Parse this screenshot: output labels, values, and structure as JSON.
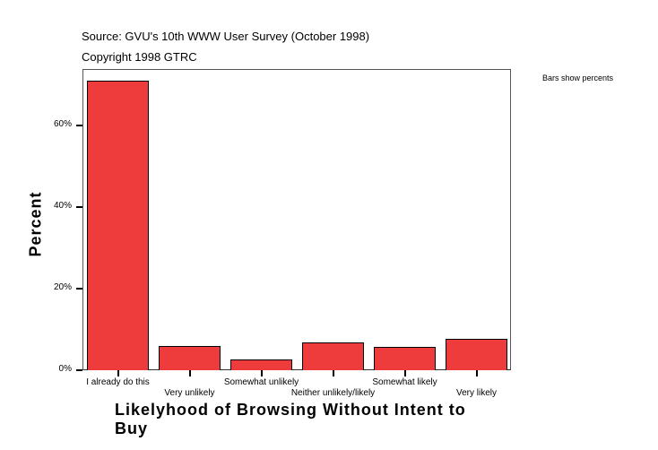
{
  "header": {
    "source": "Source: GVU's 10th WWW User Survey (October 1998)",
    "copyright": "Copyright 1998 GTRC",
    "note": "Bars show percents"
  },
  "chart_data": {
    "type": "bar",
    "title": "",
    "xlabel": "Likelyhood of Browsing Without Intent to Buy",
    "ylabel": "Percent",
    "categories": [
      "I already do this",
      "Very unlikely",
      "Somewhat unlikely",
      "Neither unlikely/likely",
      "Somewhat likely",
      "Very likely"
    ],
    "values": [
      71.0,
      5.9,
      2.6,
      6.8,
      5.7,
      7.7
    ],
    "ylim": [
      0,
      73.8
    ],
    "yticks": [
      "0%",
      "20%",
      "40%",
      "60%"
    ],
    "grid": false,
    "bar_color": "#ee3b3b",
    "legend": "none",
    "annotation": "Bars show percents"
  }
}
